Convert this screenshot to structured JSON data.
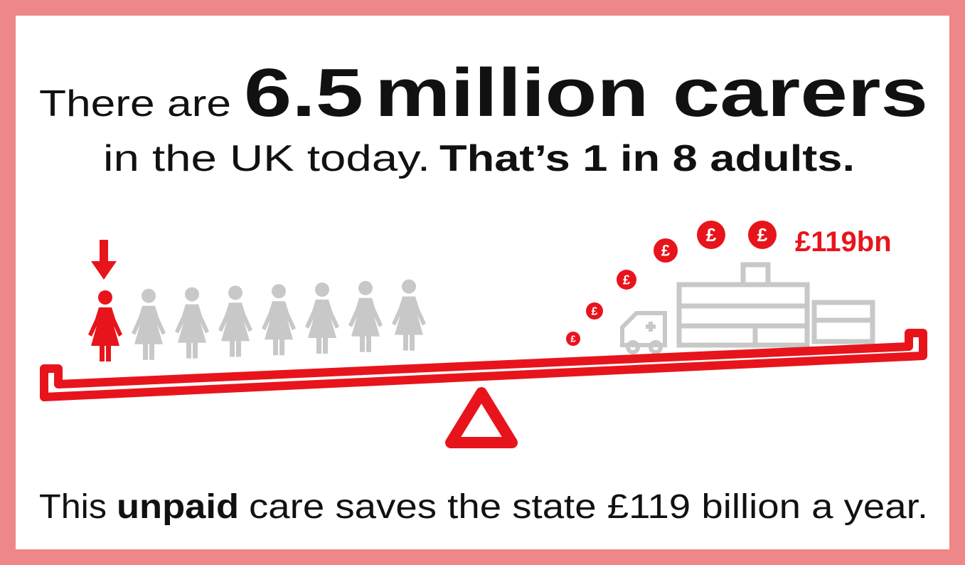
{
  "headline": {
    "prefix": "There are",
    "number": "6.5",
    "emphasis": "million carers"
  },
  "subline": {
    "text": "in the UK today.",
    "emphasis": "That’s 1 in 8 adults."
  },
  "savings_label": "£119bn",
  "coin_symbol": "£",
  "footer": {
    "prefix": "This",
    "emphasis": "unpaid",
    "suffix": "care saves the state £119 billion a year."
  }
}
